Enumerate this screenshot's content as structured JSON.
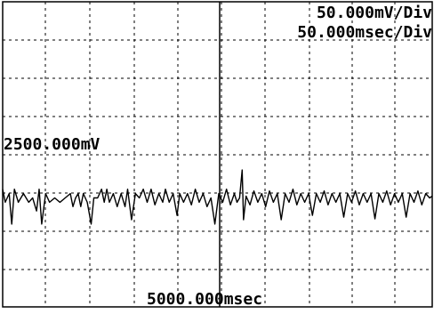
{
  "scope": {
    "volts_per_div_label": "50.000mV/Div",
    "time_per_div_label": "50.000msec/Div",
    "offset_label": "2500.000mV",
    "center_time_label": "5000.000msec"
  },
  "chart_data": {
    "type": "line",
    "title": "",
    "xlabel": "",
    "ylabel": "",
    "grid": true,
    "x_unit": "msec",
    "y_unit": "mV",
    "x_divisions": 10,
    "y_divisions": 8,
    "volts_per_div": 50,
    "msec_per_div": 50,
    "offset_mV": 2500,
    "center_time_msec": 5000,
    "xlim": [
      4840,
      5170
    ],
    "ylim": [
      2375,
      2725
    ],
    "series": [
      {
        "values": [
          [
            4840,
            2510
          ],
          [
            4842,
            2495
          ],
          [
            4845,
            2505
          ],
          [
            4847,
            2470
          ],
          [
            4849,
            2510
          ],
          [
            4852,
            2495
          ],
          [
            4856,
            2505
          ],
          [
            4860,
            2495
          ],
          [
            4863,
            2500
          ],
          [
            4866,
            2485
          ],
          [
            4868,
            2510
          ],
          [
            4870,
            2470
          ],
          [
            4873,
            2505
          ],
          [
            4876,
            2495
          ],
          [
            4880,
            2500
          ],
          [
            4884,
            2495
          ],
          [
            4888,
            2500
          ],
          [
            4892,
            2505
          ],
          [
            4894,
            2490
          ],
          [
            4896,
            2500
          ],
          [
            4898,
            2505
          ],
          [
            4900,
            2490
          ],
          [
            4902,
            2505
          ],
          [
            4905,
            2495
          ],
          [
            4908,
            2470
          ],
          [
            4910,
            2500
          ],
          [
            4913,
            2500
          ],
          [
            4916,
            2510
          ],
          [
            4918,
            2495
          ],
          [
            4920,
            2510
          ],
          [
            4922,
            2495
          ],
          [
            4925,
            2505
          ],
          [
            4928,
            2490
          ],
          [
            4931,
            2505
          ],
          [
            4934,
            2490
          ],
          [
            4936,
            2510
          ],
          [
            4939,
            2475
          ],
          [
            4942,
            2505
          ],
          [
            4945,
            2500
          ],
          [
            4948,
            2510
          ],
          [
            4951,
            2495
          ],
          [
            4954,
            2510
          ],
          [
            4957,
            2492
          ],
          [
            4960,
            2505
          ],
          [
            4963,
            2495
          ],
          [
            4965,
            2510
          ],
          [
            4968,
            2495
          ],
          [
            4971,
            2505
          ],
          [
            4974,
            2480
          ],
          [
            4976,
            2505
          ],
          [
            4979,
            2495
          ],
          [
            4982,
            2505
          ],
          [
            4985,
            2492
          ],
          [
            4988,
            2510
          ],
          [
            4991,
            2495
          ],
          [
            4994,
            2505
          ],
          [
            4997,
            2490
          ],
          [
            5000,
            2500
          ],
          [
            5003,
            2470
          ],
          [
            5006,
            2505
          ],
          [
            5009,
            2495
          ],
          [
            5012,
            2510
          ],
          [
            5015,
            2492
          ],
          [
            5018,
            2505
          ],
          [
            5020,
            2495
          ],
          [
            5022,
            2500
          ],
          [
            5024,
            2532
          ],
          [
            5025,
            2475
          ],
          [
            5027,
            2502
          ],
          [
            5030,
            2492
          ],
          [
            5033,
            2508
          ],
          [
            5036,
            2495
          ],
          [
            5039,
            2505
          ],
          [
            5042,
            2490
          ],
          [
            5045,
            2508
          ],
          [
            5048,
            2495
          ],
          [
            5051,
            2505
          ],
          [
            5054,
            2475
          ],
          [
            5057,
            2505
          ],
          [
            5060,
            2495
          ],
          [
            5063,
            2510
          ],
          [
            5066,
            2492
          ],
          [
            5069,
            2505
          ],
          [
            5072,
            2495
          ],
          [
            5075,
            2505
          ],
          [
            5078,
            2480
          ],
          [
            5081,
            2505
          ],
          [
            5084,
            2495
          ],
          [
            5087,
            2508
          ],
          [
            5090,
            2492
          ],
          [
            5093,
            2505
          ],
          [
            5096,
            2495
          ],
          [
            5099,
            2505
          ],
          [
            5102,
            2478
          ],
          [
            5105,
            2505
          ],
          [
            5108,
            2495
          ],
          [
            5111,
            2508
          ],
          [
            5114,
            2492
          ],
          [
            5117,
            2505
          ],
          [
            5120,
            2495
          ],
          [
            5123,
            2505
          ],
          [
            5126,
            2476
          ],
          [
            5129,
            2505
          ],
          [
            5132,
            2495
          ],
          [
            5135,
            2508
          ],
          [
            5138,
            2492
          ],
          [
            5141,
            2505
          ],
          [
            5144,
            2495
          ],
          [
            5147,
            2505
          ],
          [
            5150,
            2478
          ],
          [
            5153,
            2505
          ],
          [
            5156,
            2495
          ],
          [
            5159,
            2508
          ],
          [
            5162,
            2492
          ],
          [
            5165,
            2505
          ],
          [
            5168,
            2500
          ],
          [
            5170,
            2502
          ]
        ]
      }
    ]
  }
}
